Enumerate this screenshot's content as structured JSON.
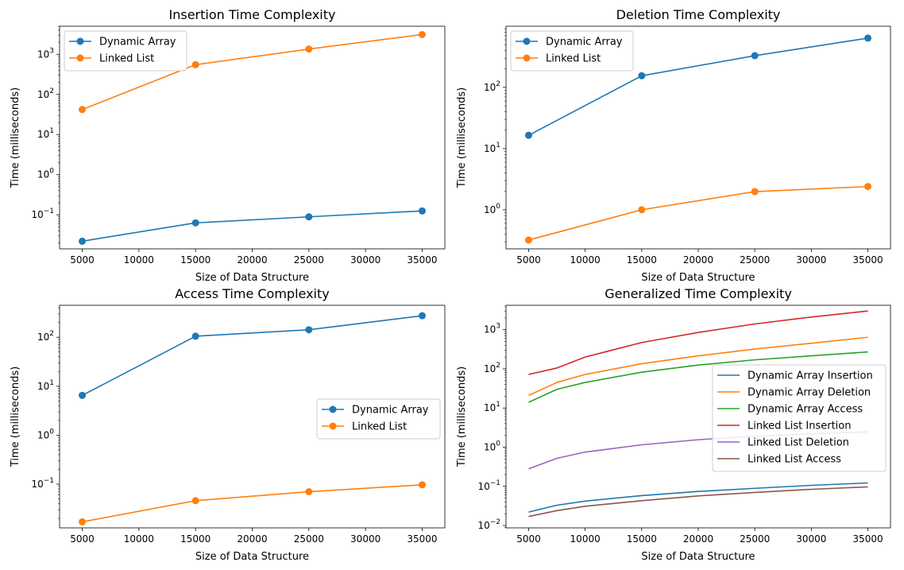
{
  "chart_data": [
    {
      "type": "line",
      "title": "Insertion Time Complexity",
      "xlabel": "Size of Data Structure",
      "ylabel": "Time (milliseconds)",
      "yscale": "log",
      "legend": "top-left",
      "xlim": [
        3000,
        37000
      ],
      "ylim": [
        0.0142,
        5000
      ],
      "x_ticks": [
        5000,
        10000,
        15000,
        20000,
        25000,
        30000,
        35000
      ],
      "y_ticks": [
        0.1,
        1,
        10,
        100,
        1000
      ],
      "x": [
        5000,
        15000,
        25000,
        35000
      ],
      "series": [
        {
          "name": "Dynamic Array",
          "color": "#1f77b4",
          "marker": "circle",
          "values": [
            0.022,
            0.063,
            0.089,
            0.125
          ]
        },
        {
          "name": "Linked List",
          "color": "#ff7f0e",
          "marker": "circle",
          "values": [
            42,
            550,
            1350,
            3100
          ]
        }
      ]
    },
    {
      "type": "line",
      "title": "Deletion Time Complexity",
      "xlabel": "Size of Data Structure",
      "ylabel": "Time (milliseconds)",
      "yscale": "log",
      "legend": "top-left",
      "xlim": [
        3000,
        37000
      ],
      "ylim": [
        0.23,
        1000
      ],
      "x_ticks": [
        5000,
        10000,
        15000,
        20000,
        25000,
        30000,
        35000
      ],
      "y_ticks": [
        1,
        10,
        100
      ],
      "x": [
        5000,
        15000,
        25000,
        35000
      ],
      "series": [
        {
          "name": "Dynamic Array",
          "color": "#1f77b4",
          "marker": "circle",
          "values": [
            16.5,
            155,
            330,
            640
          ]
        },
        {
          "name": "Linked List",
          "color": "#ff7f0e",
          "marker": "circle",
          "values": [
            0.32,
            1.0,
            1.98,
            2.4
          ]
        }
      ]
    },
    {
      "type": "line",
      "title": "Access Time Complexity",
      "xlabel": "Size of Data Structure",
      "ylabel": "Time (milliseconds)",
      "yscale": "log",
      "legend": "center-right",
      "xlim": [
        3000,
        37000
      ],
      "ylim": [
        0.0128,
        450
      ],
      "x_ticks": [
        5000,
        10000,
        15000,
        20000,
        25000,
        30000,
        35000
      ],
      "y_ticks": [
        0.1,
        1,
        10,
        100
      ],
      "x": [
        5000,
        15000,
        25000,
        35000
      ],
      "series": [
        {
          "name": "Dynamic Array",
          "color": "#1f77b4",
          "marker": "circle",
          "values": [
            6.5,
            105,
            142,
            275
          ]
        },
        {
          "name": "Linked List",
          "color": "#ff7f0e",
          "marker": "circle",
          "values": [
            0.017,
            0.046,
            0.07,
            0.097
          ]
        }
      ]
    },
    {
      "type": "line",
      "title": "Generalized Time Complexity",
      "xlabel": "Size of Data Structure",
      "ylabel": "Time (milliseconds)",
      "yscale": "log",
      "legend": "center-right",
      "xlim": [
        3000,
        37000
      ],
      "ylim": [
        0.0087,
        4200
      ],
      "x_ticks": [
        5000,
        10000,
        15000,
        20000,
        25000,
        30000,
        35000
      ],
      "y_ticks": [
        0.01,
        0.1,
        1,
        10,
        100,
        1000
      ],
      "x": [
        5000,
        7500,
        10000,
        15000,
        20000,
        25000,
        30000,
        35000
      ],
      "series": [
        {
          "name": "Dynamic Array Insertion",
          "color": "#1f77b4",
          "marker": "none",
          "values": [
            0.022,
            0.033,
            0.042,
            0.058,
            0.074,
            0.089,
            0.106,
            0.122
          ]
        },
        {
          "name": "Dynamic Array Deletion",
          "color": "#ff7f0e",
          "marker": "none",
          "values": [
            21,
            45,
            72,
            135,
            215,
            320,
            450,
            640
          ]
        },
        {
          "name": "Dynamic Array Access",
          "color": "#2ca02c",
          "marker": "none",
          "values": [
            14,
            30,
            45,
            82,
            125,
            170,
            215,
            270
          ]
        },
        {
          "name": "Linked List Insertion",
          "color": "#d62728",
          "marker": "none",
          "values": [
            72,
            105,
            200,
            470,
            850,
            1400,
            2100,
            3000
          ]
        },
        {
          "name": "Linked List Deletion",
          "color": "#9467bd",
          "marker": "none",
          "values": [
            0.28,
            0.52,
            0.75,
            1.15,
            1.55,
            1.9,
            2.2,
            2.45
          ]
        },
        {
          "name": "Linked List Access",
          "color": "#8c564b",
          "marker": "none",
          "values": [
            0.017,
            0.024,
            0.031,
            0.043,
            0.057,
            0.07,
            0.084,
            0.097
          ]
        }
      ]
    }
  ]
}
